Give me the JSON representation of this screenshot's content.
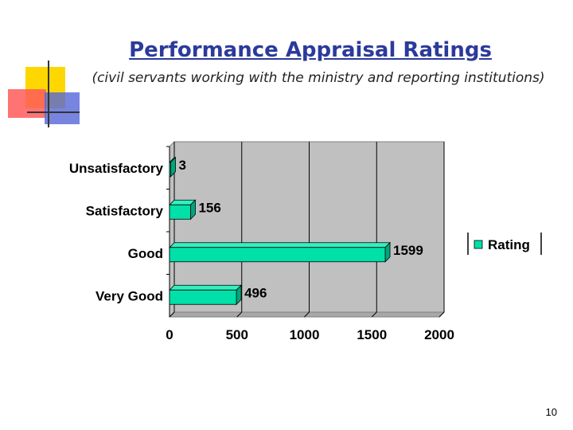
{
  "slide": {
    "title": "Performance Appraisal Ratings",
    "subtitle": "(civil servants working with the ministry and reporting institutions)",
    "page_number": "10"
  },
  "colors": {
    "bar_fill": "#00e0a8",
    "bar_top": "#33f0c0",
    "bar_side": "#00a67c",
    "plot_bg": "#c0c0c0",
    "title": "#2b3a9c",
    "deco_yellow": "#ffd700",
    "deco_red": "#ff4a4a",
    "deco_blue": "#4a5bd0"
  },
  "chart_data": {
    "type": "bar",
    "orientation": "horizontal",
    "categories": [
      "Unsatisfactory",
      "Satisfactory",
      "Good",
      "Very Good"
    ],
    "series": [
      {
        "name": "Rating",
        "values": [
          3,
          156,
          1599,
          496
        ]
      }
    ],
    "data_labels": [
      "3",
      "156",
      "1599",
      "496"
    ],
    "x_ticks": [
      0,
      500,
      1000,
      1500,
      2000
    ],
    "x_tick_labels": [
      "0",
      "500",
      "1000",
      "1500",
      "2000"
    ],
    "xlim": [
      0,
      2000
    ],
    "grid": true,
    "legend": {
      "position": "right",
      "entries": [
        "Rating"
      ]
    },
    "style": "3d"
  }
}
